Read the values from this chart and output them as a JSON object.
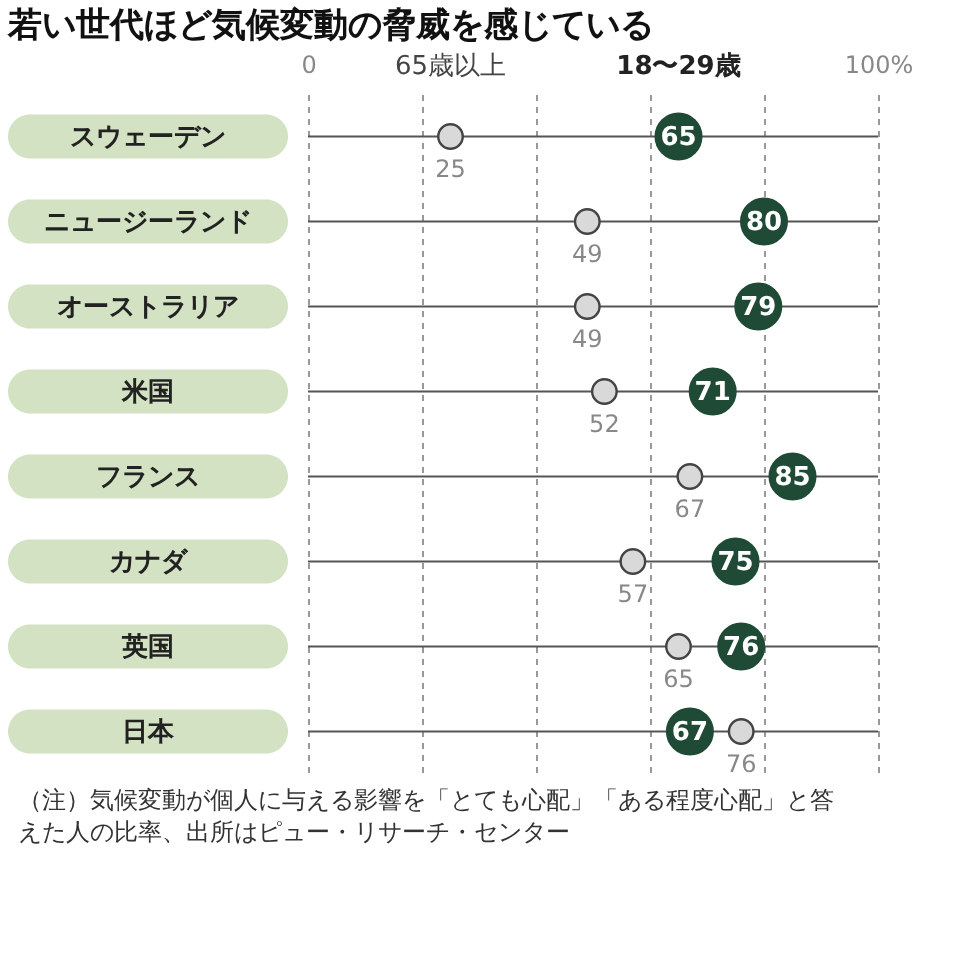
{
  "chart_data": {
    "type": "scatter",
    "orientation": "horizontal",
    "title": "若い世代ほど気候変動の脅威を感じている",
    "categories": [
      "スウェーデン",
      "ニュージーランド",
      "オーストラリア",
      "米国",
      "フランス",
      "カナダ",
      "英国",
      "日本"
    ],
    "series": [
      {
        "name": "65歳以上",
        "color": "#d9d9d9",
        "values": [
          25,
          49,
          49,
          52,
          67,
          57,
          65,
          76
        ]
      },
      {
        "name": "18〜29歳",
        "color": "#1e4a36",
        "values": [
          65,
          80,
          79,
          71,
          85,
          75,
          76,
          67
        ]
      }
    ],
    "xlim": [
      0,
      100
    ],
    "xticks": [
      {
        "value": 0,
        "label": "0"
      },
      {
        "value": 20,
        "label": null
      },
      {
        "value": 40,
        "label": null
      },
      {
        "value": 60,
        "label": null
      },
      {
        "value": 80,
        "label": null
      },
      {
        "value": 100,
        "label": "100%"
      }
    ],
    "grid": "x",
    "legend": false,
    "data_labels": true,
    "marker": "circle",
    "annotations": [
      "（注）気候変動が個人に与える影響を「とても心配」「ある程度心配」と答えた人の比率、出所はピュー・リサーチ・センター"
    ]
  }
}
